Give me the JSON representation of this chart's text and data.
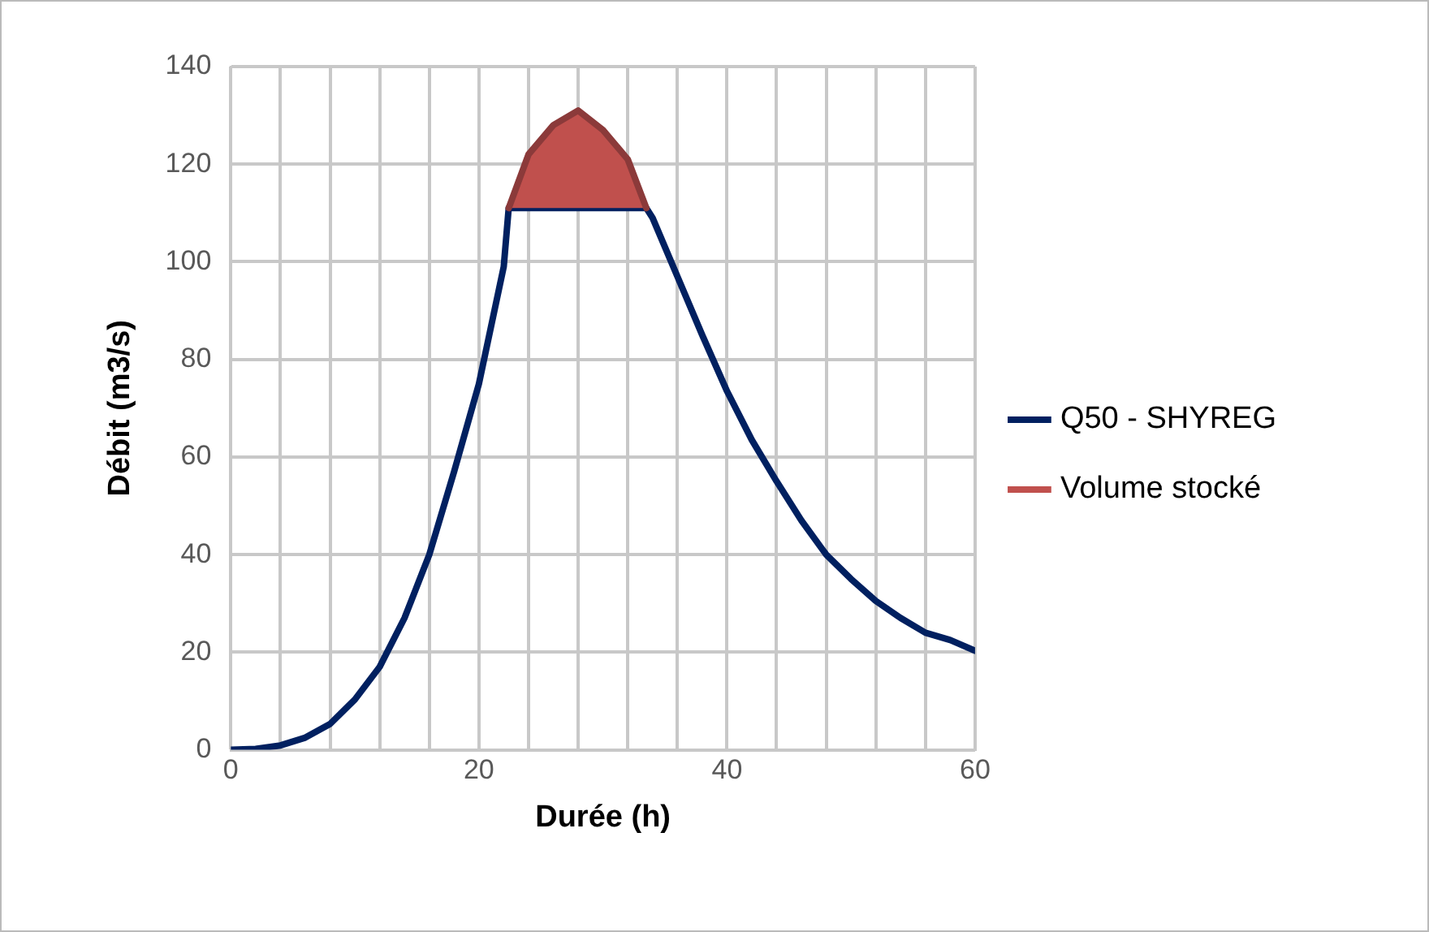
{
  "chart_data": {
    "type": "line",
    "xlabel": "Durée (h)",
    "ylabel": "Débit (m3/s)",
    "xlim": [
      0,
      60
    ],
    "ylim": [
      0,
      140
    ],
    "xticks": [
      0,
      {
        "value": 4,
        "label": null
      },
      {
        "value": 8,
        "label": null
      },
      {
        "value": 12,
        "label": null
      },
      {
        "value": 16,
        "label": null
      },
      20,
      {
        "value": 24,
        "label": null
      },
      {
        "value": 28,
        "label": null
      },
      {
        "value": 32,
        "label": null
      },
      {
        "value": 36,
        "label": null
      },
      40,
      {
        "value": 44,
        "label": null
      },
      {
        "value": 48,
        "label": null
      },
      {
        "value": 52,
        "label": null
      },
      {
        "value": 56,
        "label": null
      },
      60
    ],
    "yticks": [
      0,
      20,
      40,
      60,
      80,
      100,
      120,
      140
    ],
    "grid": true,
    "legend": "right",
    "marker": "none",
    "line_style": "solid",
    "series": [
      {
        "name": "Q50 - SHYREG",
        "color": "#002060",
        "x": [
          0,
          2,
          4,
          6,
          8,
          10,
          12,
          14,
          16,
          18,
          20,
          22,
          22.4,
          33.5,
          34,
          36,
          38,
          40,
          42,
          44,
          46,
          48,
          50,
          52,
          54,
          56,
          58,
          60
        ],
        "values": [
          0,
          0.2,
          0.9,
          2.5,
          5.3,
          10.3,
          17,
          27,
          40,
          57,
          75,
          99,
          111,
          111,
          109,
          97,
          85,
          73.5,
          63.5,
          55,
          47,
          40,
          35,
          30.5,
          27,
          24,
          22.5,
          20.3
        ]
      },
      {
        "name": "Volume stocké",
        "type": "area",
        "color": "#c0504d",
        "x": [
          22.4,
          24,
          26,
          28,
          30,
          32,
          33.5
        ],
        "values": [
          111,
          122,
          128,
          131,
          127,
          121,
          111
        ]
      }
    ]
  }
}
